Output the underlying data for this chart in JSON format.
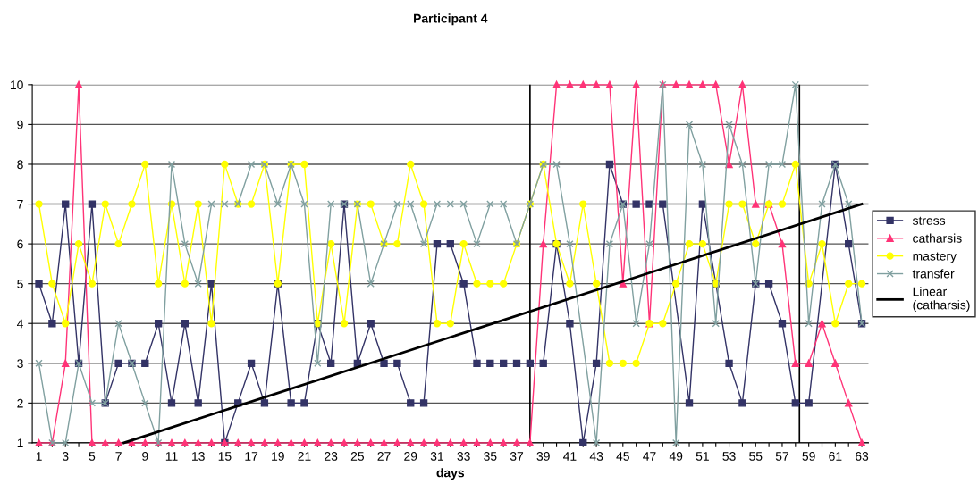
{
  "chart_data": {
    "type": "line",
    "title": "Participant 4",
    "xlabel": "days",
    "x": [
      1,
      2,
      3,
      4,
      5,
      6,
      7,
      8,
      9,
      10,
      11,
      12,
      13,
      14,
      15,
      16,
      17,
      18,
      19,
      20,
      21,
      22,
      23,
      24,
      25,
      26,
      27,
      28,
      29,
      30,
      31,
      32,
      33,
      34,
      35,
      36,
      37,
      38,
      39,
      40,
      41,
      42,
      43,
      44,
      45,
      46,
      47,
      48,
      49,
      50,
      51,
      52,
      53,
      54,
      55,
      56,
      57,
      58,
      59,
      60,
      61,
      62,
      63
    ],
    "series": [
      {
        "name": "stress",
        "color": "#333366",
        "marker": "square",
        "values": [
          5,
          4,
          7,
          3,
          7,
          2,
          3,
          3,
          3,
          4,
          2,
          4,
          2,
          5,
          1,
          2,
          3,
          2,
          5,
          2,
          2,
          4,
          3,
          7,
          3,
          4,
          3,
          3,
          2,
          2,
          6,
          6,
          5,
          3,
          3,
          3,
          3,
          3,
          3,
          6,
          4,
          1,
          3,
          8,
          7,
          7,
          7,
          7,
          null,
          2,
          7,
          5,
          3,
          2,
          5,
          5,
          4,
          2,
          2,
          null,
          8,
          6,
          4
        ]
      },
      {
        "name": "catharsis",
        "color": "#ff3377",
        "marker": "triangle",
        "values": [
          1,
          1,
          3,
          10,
          1,
          1,
          1,
          1,
          1,
          1,
          1,
          1,
          1,
          1,
          1,
          1,
          1,
          1,
          1,
          1,
          1,
          1,
          1,
          1,
          1,
          1,
          1,
          1,
          1,
          1,
          1,
          1,
          1,
          1,
          1,
          1,
          1,
          1,
          6,
          10,
          10,
          10,
          10,
          10,
          5,
          10,
          4,
          10,
          10,
          10,
          10,
          10,
          8,
          10,
          7,
          7,
          6,
          3,
          3,
          4,
          3,
          2,
          1
        ]
      },
      {
        "name": "mastery",
        "color": "#ffff00",
        "marker": "circle",
        "values": [
          7,
          5,
          4,
          6,
          5,
          7,
          6,
          7,
          8,
          5,
          7,
          5,
          7,
          4,
          8,
          7,
          7,
          8,
          5,
          8,
          8,
          4,
          6,
          4,
          7,
          7,
          6,
          6,
          8,
          7,
          4,
          4,
          6,
          5,
          5,
          5,
          6,
          7,
          8,
          6,
          5,
          7,
          5,
          3,
          3,
          3,
          4,
          4,
          5,
          6,
          6,
          5,
          7,
          7,
          6,
          7,
          7,
          8,
          5,
          6,
          4,
          5,
          5
        ]
      },
      {
        "name": "transfer",
        "color": "#80a0a0",
        "marker": "cross",
        "values": [
          3,
          1,
          1,
          3,
          2,
          2,
          4,
          3,
          2,
          1,
          8,
          6,
          5,
          7,
          7,
          7,
          8,
          8,
          7,
          8,
          7,
          3,
          7,
          7,
          7,
          5,
          6,
          7,
          7,
          6,
          7,
          7,
          7,
          6,
          7,
          7,
          6,
          7,
          8,
          8,
          6,
          null,
          1,
          6,
          7,
          4,
          6,
          10,
          1,
          9,
          8,
          4,
          9,
          8,
          5,
          8,
          8,
          10,
          4,
          7,
          8,
          7,
          4
        ]
      },
      {
        "name": "Linear\n(catharsis)",
        "color": "#000000",
        "marker": "none",
        "x": [
          7.4,
          63
        ],
        "values": [
          1,
          7
        ]
      }
    ],
    "xlim": [
      0.5,
      63.5
    ],
    "xticks": [
      1,
      {
        "value": 2,
        "label": null
      },
      3,
      {
        "value": 4,
        "label": null
      },
      5,
      {
        "value": 6,
        "label": null
      },
      7,
      {
        "value": 8,
        "label": null
      },
      9,
      {
        "value": 10,
        "label": null
      },
      11,
      {
        "value": 12,
        "label": null
      },
      13,
      {
        "value": 14,
        "label": null
      },
      15,
      {
        "value": 16,
        "label": null
      },
      17,
      {
        "value": 18,
        "label": null
      },
      19,
      {
        "value": 20,
        "label": null
      },
      21,
      {
        "value": 22,
        "label": null
      },
      23,
      {
        "value": 24,
        "label": null
      },
      25,
      {
        "value": 26,
        "label": null
      },
      27,
      {
        "value": 28,
        "label": null
      },
      29,
      {
        "value": 30,
        "label": null
      },
      31,
      {
        "value": 32,
        "label": null
      },
      33,
      {
        "value": 34,
        "label": null
      },
      35,
      {
        "value": 36,
        "label": null
      },
      37,
      {
        "value": 38,
        "label": null
      },
      39,
      {
        "value": 40,
        "label": null
      },
      41,
      {
        "value": 42,
        "label": null
      },
      43,
      {
        "value": 44,
        "label": null
      },
      45,
      {
        "value": 46,
        "label": null
      },
      47,
      {
        "value": 48,
        "label": null
      },
      49,
      {
        "value": 50,
        "label": null
      },
      51,
      {
        "value": 52,
        "label": null
      },
      53,
      {
        "value": 54,
        "label": null
      },
      55,
      {
        "value": 56,
        "label": null
      },
      57,
      {
        "value": 58,
        "label": null
      },
      59,
      {
        "value": 60,
        "label": null
      },
      61,
      {
        "value": 62,
        "label": null
      },
      63
    ],
    "ylim": [
      1,
      10
    ],
    "yticks": [
      1,
      2,
      3,
      4,
      5,
      6,
      7,
      8,
      9,
      10
    ],
    "ref_lines": [
      {
        "axis": "x",
        "value": 38,
        "color": "#000000"
      },
      {
        "axis": "x",
        "value": 58.3,
        "color": "#000000"
      }
    ],
    "grid": "y",
    "legend": "right",
    "line_style": "solid"
  }
}
